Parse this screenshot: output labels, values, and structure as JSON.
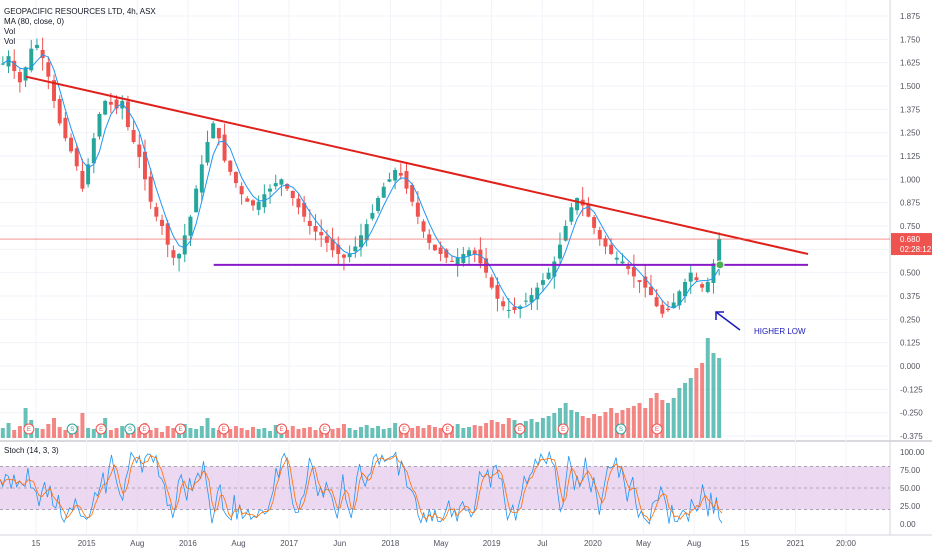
{
  "chart_data": {
    "type": "candlestick",
    "legend": {
      "symbol": "GEOPACIFIC RESOURCES LTD, 4h, ASX",
      "ma": "MA (80, close, 0)",
      "vol1": "Vol",
      "vol2": "Vol"
    },
    "price_axis": {
      "ticks": [
        1.875,
        1.75,
        1.625,
        1.5,
        1.375,
        1.25,
        1.125,
        1.0,
        0.875,
        0.75,
        0.625,
        0.5,
        0.375,
        0.25,
        0.125,
        0.0,
        -0.125,
        -0.25,
        -0.375
      ],
      "tick_labels": [
        "1.875",
        "1.750",
        "1.625",
        "1.500",
        "1.375",
        "1.250",
        "1.125",
        "1.000",
        "0.875",
        "0.750",
        "0.625",
        "0.500",
        "0.375",
        "0.250",
        "0.125",
        "0.000",
        "-0.125",
        "-0.250",
        "-0.375"
      ],
      "ylim": [
        -0.375,
        1.875
      ]
    },
    "time_axis": {
      "labels": [
        "15",
        "2015",
        "Aug",
        "2016",
        "Aug",
        "2017",
        "Jun",
        "2018",
        "May",
        "2019",
        "Jul",
        "2020",
        "May",
        "Aug",
        "15",
        "2021",
        "20:00"
      ]
    },
    "last_price": {
      "value": 0.68,
      "label": "0.680",
      "countdown": "02:28:12"
    },
    "trendlines": [
      {
        "name": "resistance",
        "color": "#e0201b",
        "from": [
          0.0,
          1.55
        ],
        "to": [
          1.0,
          0.6
        ]
      },
      {
        "name": "support",
        "color": "#8a1bc8",
        "from": [
          0.24,
          0.542
        ],
        "to": [
          1.0,
          0.542
        ]
      }
    ],
    "close_series": [
      1.62,
      1.66,
      1.58,
      1.52,
      1.6,
      1.7,
      1.72,
      1.65,
      1.55,
      1.42,
      1.3,
      1.22,
      1.15,
      1.07,
      0.95,
      1.08,
      1.22,
      1.35,
      1.42,
      1.4,
      1.38,
      1.42,
      1.28,
      1.2,
      1.12,
      1.0,
      0.88,
      0.8,
      0.75,
      0.65,
      0.58,
      0.6,
      0.7,
      0.8,
      0.95,
      1.08,
      1.2,
      1.3,
      1.22,
      1.1,
      1.04,
      0.98,
      0.92,
      0.88,
      0.86,
      0.88,
      0.92,
      0.95,
      0.98,
      1.0,
      0.95,
      0.9,
      0.85,
      0.8,
      0.75,
      0.72,
      0.7,
      0.66,
      0.62,
      0.6,
      0.58,
      0.6,
      0.64,
      0.7,
      0.76,
      0.82,
      0.9,
      0.96,
      1.0,
      1.05,
      1.02,
      0.95,
      0.88,
      0.8,
      0.72,
      0.66,
      0.62,
      0.6,
      0.58,
      0.56,
      0.58,
      0.6,
      0.62,
      0.6,
      0.55,
      0.5,
      0.42,
      0.36,
      0.32,
      0.3,
      0.3,
      0.32,
      0.35,
      0.38,
      0.42,
      0.46,
      0.5,
      0.56,
      0.65,
      0.75,
      0.85,
      0.9,
      0.86,
      0.8,
      0.74,
      0.68,
      0.64,
      0.6,
      0.58,
      0.56,
      0.52,
      0.48,
      0.45,
      0.42,
      0.38,
      0.32,
      0.28,
      0.3,
      0.34,
      0.4,
      0.45,
      0.5,
      0.46,
      0.42,
      0.45,
      0.55,
      0.68
    ],
    "volume_series": [
      0.1,
      0.15,
      0.08,
      0.12,
      0.3,
      0.18,
      0.1,
      0.09,
      0.14,
      0.2,
      0.11,
      0.08,
      0.07,
      0.12,
      0.25,
      0.1,
      0.09,
      0.13,
      0.2,
      0.08,
      0.1,
      0.12,
      0.07,
      0.09,
      0.11,
      0.15,
      0.08,
      0.1,
      0.06,
      0.12,
      0.1,
      0.08,
      0.14,
      0.1,
      0.09,
      0.12,
      0.2,
      0.1,
      0.08,
      0.07,
      0.09,
      0.12,
      0.1,
      0.08,
      0.11,
      0.09,
      0.1,
      0.07,
      0.13,
      0.1,
      0.08,
      0.12,
      0.09,
      0.1,
      0.11,
      0.08,
      0.1,
      0.12,
      0.09,
      0.1,
      0.14,
      0.1,
      0.08,
      0.11,
      0.13,
      0.1,
      0.12,
      0.09,
      0.1,
      0.15,
      0.11,
      0.09,
      0.1,
      0.12,
      0.1,
      0.13,
      0.11,
      0.1,
      0.09,
      0.12,
      0.14,
      0.1,
      0.11,
      0.13,
      0.12,
      0.15,
      0.18,
      0.16,
      0.14,
      0.2,
      0.18,
      0.15,
      0.17,
      0.19,
      0.16,
      0.2,
      0.22,
      0.25,
      0.3,
      0.35,
      0.28,
      0.26,
      0.22,
      0.2,
      0.24,
      0.22,
      0.26,
      0.3,
      0.25,
      0.28,
      0.3,
      0.32,
      0.35,
      0.3,
      0.4,
      0.45,
      0.38,
      0.35,
      0.4,
      0.5,
      0.55,
      0.6,
      0.7,
      0.75,
      1.0,
      0.85,
      0.8
    ],
    "events": [
      {
        "type": "E",
        "x": 0.04
      },
      {
        "type": "S",
        "x": 0.1
      },
      {
        "type": "E",
        "x": 0.14
      },
      {
        "type": "S",
        "x": 0.18
      },
      {
        "type": "E",
        "x": 0.2
      },
      {
        "type": "E",
        "x": 0.25
      },
      {
        "type": "E",
        "x": 0.31
      },
      {
        "type": "E",
        "x": 0.39
      },
      {
        "type": "E",
        "x": 0.45
      },
      {
        "type": "E",
        "x": 0.56
      },
      {
        "type": "E",
        "x": 0.62
      },
      {
        "type": "E",
        "x": 0.72
      },
      {
        "type": "E",
        "x": 0.78
      },
      {
        "type": "S",
        "x": 0.86
      },
      {
        "type": "E",
        "x": 0.91
      }
    ],
    "annotation": {
      "text": "HIGHER LOW",
      "target_price": 0.3,
      "color": "#1a1ab8"
    },
    "stochastic": {
      "label": "Stoch (14, 3, 3)",
      "ticks": [
        100,
        75,
        50,
        25,
        0
      ],
      "tick_labels": [
        "100.00",
        "75.00",
        "50.00",
        "25.00",
        "0.00"
      ],
      "band": [
        20,
        80
      ],
      "ylim": [
        -10,
        105
      ]
    },
    "colors": {
      "up": "#26a69a",
      "down": "#ef5350",
      "ma": "#2196f3",
      "resistance": "#e0201b",
      "support": "#8a1bc8",
      "last_price": "#ef5350",
      "stoch_k": "#2196f3",
      "stoch_d": "#ff6d00",
      "stoch_band": "#e1bee7"
    }
  }
}
